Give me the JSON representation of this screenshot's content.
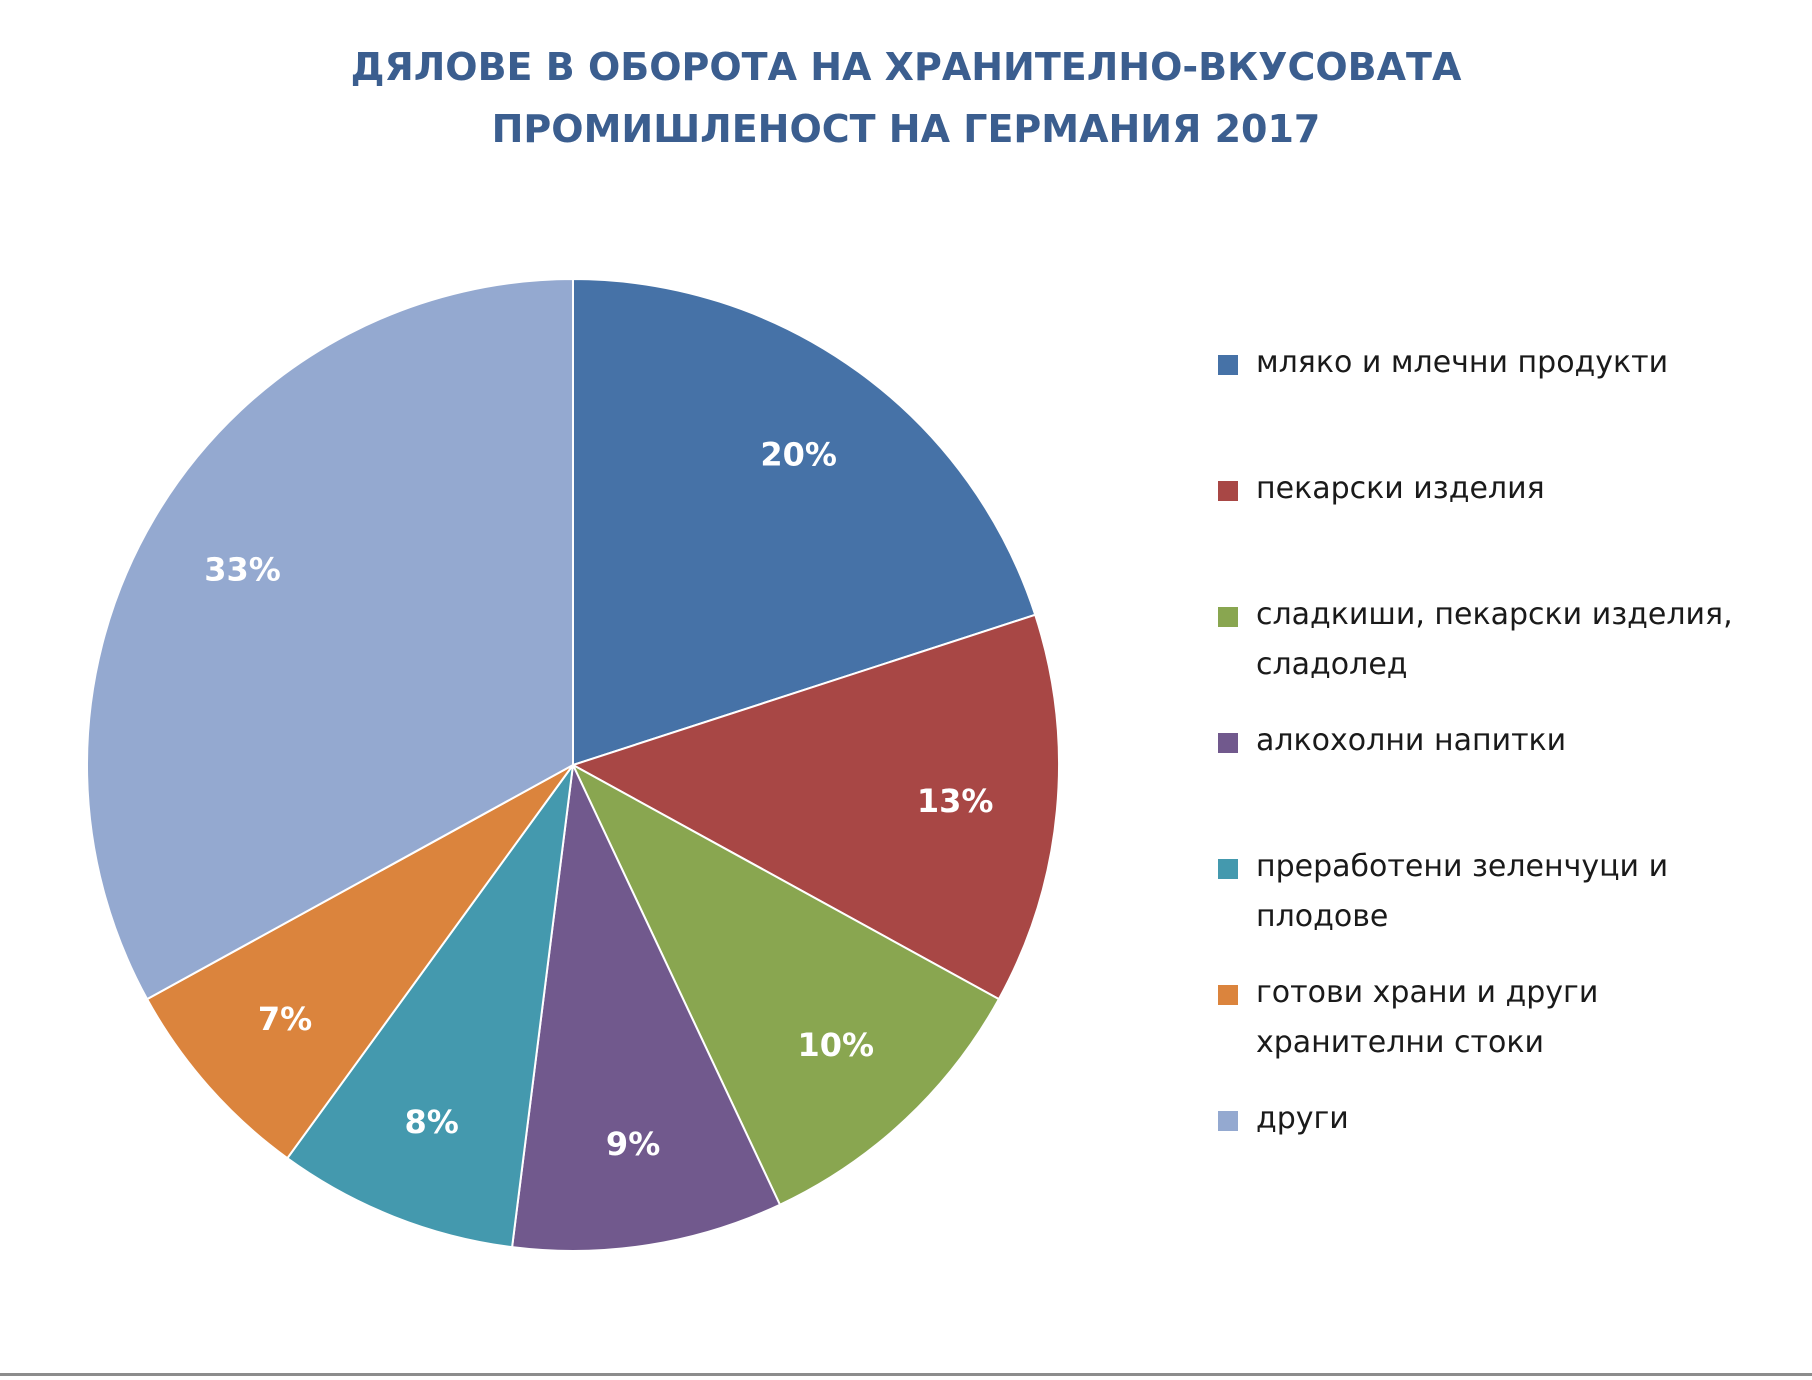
{
  "chart_data": {
    "type": "pie",
    "title_lines": [
      "ДЯЛОВЕ В ОБОРОТА НА ХРАНИТЕЛНО-ВКУСОВАТА",
      "ПРОМИШЛЕНОСТ НА ГЕРМАНИЯ 2017"
    ],
    "legend_position": "right",
    "slices": [
      {
        "label": "мляко и млечни продукти",
        "value": 20,
        "display": "20%",
        "color": "#4672a7"
      },
      {
        "label": "пекарски изделия",
        "value": 13,
        "display": "13%",
        "color": "#a84745"
      },
      {
        "label": "сладкиши, пекарски изделия, сладолед",
        "value": 10,
        "display": "10%",
        "color": "#89a650"
      },
      {
        "label": "алкохолни напитки",
        "value": 9,
        "display": "9%",
        "color": "#71598d"
      },
      {
        "label": "преработени зеленчуци и плодове",
        "value": 8,
        "display": "8%",
        "color": "#4499ae"
      },
      {
        "label": "готови храни и други хранителни стоки",
        "value": 7,
        "display": "7%",
        "color": "#db843d"
      },
      {
        "label": "други",
        "value": 33,
        "display": "33%",
        "color": "#94a9d0"
      }
    ]
  }
}
